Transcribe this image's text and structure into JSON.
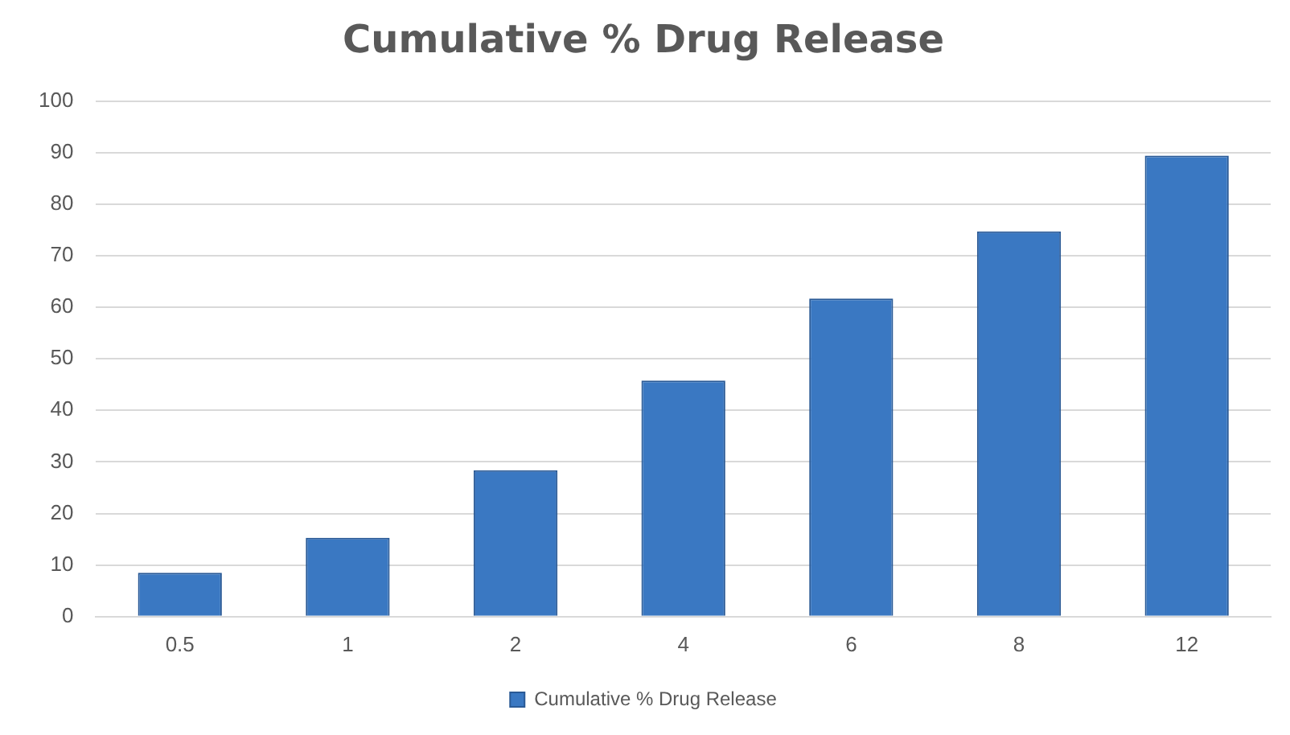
{
  "chart_data": {
    "type": "bar",
    "title": "Cumulative % Drug Release",
    "categories": [
      "0.5",
      "1",
      "2",
      "4",
      "6",
      "8",
      "12"
    ],
    "series": [
      {
        "name": "Cumulative % Drug Release",
        "color": "#3a78c2",
        "values": [
          8.5,
          15.3,
          28.4,
          45.8,
          61.7,
          74.7,
          89.4
        ]
      }
    ],
    "ylim": [
      0,
      100
    ],
    "yticks": [
      0,
      10,
      20,
      30,
      40,
      50,
      60,
      70,
      80,
      90,
      100
    ],
    "grid": "y",
    "legend": "bottom"
  }
}
